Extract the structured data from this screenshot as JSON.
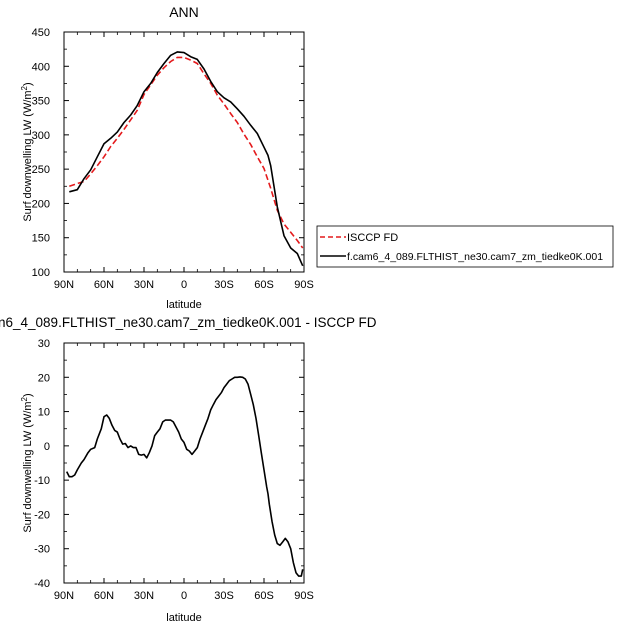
{
  "chart_data": [
    {
      "type": "line",
      "title": "ANN",
      "xlabel": "latitude",
      "ylabel_main": "Surf downwelling LW (W/m",
      "ylabel_sup": "2",
      "ylabel_close": ")",
      "xlim": [
        90,
        -90
      ],
      "ylim": [
        100,
        450
      ],
      "xticks": [
        90,
        60,
        30,
        0,
        -30,
        -60,
        -90
      ],
      "xticklabels": [
        "90N",
        "60N",
        "30N",
        "0",
        "30S",
        "60S",
        "90S"
      ],
      "yticks": [
        100,
        150,
        200,
        250,
        300,
        350,
        400,
        450
      ],
      "yticklabels": [
        "100",
        "150",
        "200",
        "250",
        "300",
        "350",
        "400",
        "450"
      ],
      "legend_position": "right",
      "series": [
        {
          "name": "ISCCP FD",
          "color": "#e41a1c",
          "dash": "dashed",
          "x": [
            86,
            80,
            75,
            70,
            65,
            60,
            55,
            50,
            45,
            40,
            35,
            30,
            25,
            20,
            15,
            10,
            5,
            0,
            -5,
            -10,
            -15,
            -20,
            -25,
            -30,
            -35,
            -40,
            -45,
            -50,
            -55,
            -60,
            -65,
            -70,
            -75,
            -80,
            -85,
            -89
          ],
          "y": [
            225,
            229,
            232,
            243,
            255,
            268,
            283,
            295,
            308,
            322,
            336,
            359,
            373,
            387,
            398,
            407,
            413,
            413,
            409,
            404,
            389,
            375,
            358,
            345,
            331,
            318,
            301,
            286,
            268,
            251,
            222,
            190,
            170,
            158,
            146,
            135
          ]
        },
        {
          "name": "f.cam6_4_089.FLTHIST_ne30.cam7_zm_tiedke0K.001",
          "color": "#000000",
          "dash": "solid",
          "x": [
            86,
            80,
            75,
            70,
            65,
            60,
            55,
            50,
            45,
            40,
            35,
            30,
            25,
            20,
            15,
            10,
            5,
            0,
            -5,
            -10,
            -15,
            -20,
            -25,
            -30,
            -35,
            -40,
            -45,
            -50,
            -55,
            -60,
            -63,
            -65,
            -70,
            -75,
            -80,
            -85,
            -89
          ],
          "y": [
            217,
            220,
            236,
            249,
            268,
            287,
            295,
            304,
            318,
            329,
            343,
            363,
            375,
            391,
            404,
            416,
            421,
            420,
            414,
            410,
            396,
            378,
            363,
            354,
            348,
            338,
            327,
            314,
            302,
            282,
            270,
            255,
            195,
            153,
            135,
            127,
            109
          ]
        }
      ]
    },
    {
      "type": "line",
      "title": "n6_4_089.FLTHIST_ne30.cam7_zm_tiedke0K.001 - ISCCP FD",
      "xlabel": "latitude",
      "ylabel_main": "Surf downwelling LW (W/m",
      "ylabel_sup": "2",
      "ylabel_close": ")",
      "xlim": [
        90,
        -90
      ],
      "ylim": [
        -40,
        30
      ],
      "xticks": [
        90,
        60,
        30,
        0,
        -30,
        -60,
        -90
      ],
      "xticklabels": [
        "90N",
        "60N",
        "30N",
        "0",
        "30S",
        "60S",
        "90S"
      ],
      "yticks": [
        -40,
        -30,
        -20,
        -10,
        0,
        10,
        20,
        30
      ],
      "yticklabels": [
        "-40",
        "-30",
        "-20",
        "-10",
        "0",
        "10",
        "20",
        "30"
      ],
      "series": [
        {
          "color": "#000000",
          "dash": "solid",
          "x": [
            88,
            86,
            84,
            82,
            80,
            77,
            75,
            72,
            70,
            67,
            65,
            62,
            60,
            58,
            56,
            54,
            52,
            50,
            48,
            46,
            44,
            42,
            40,
            38,
            36,
            34,
            32,
            30,
            28,
            26,
            24,
            22,
            20,
            18,
            16,
            14,
            12,
            10,
            8,
            6,
            4,
            2,
            0,
            -2,
            -4,
            -6,
            -8,
            -10,
            -12,
            -14,
            -16,
            -18,
            -20,
            -22,
            -24,
            -26,
            -28,
            -30,
            -32,
            -34,
            -36,
            -38,
            -40,
            -42,
            -44,
            -46,
            -48,
            -50,
            -52,
            -54,
            -56,
            -58,
            -60,
            -62,
            -63,
            -64,
            -66,
            -68,
            -70,
            -72,
            -74,
            -76,
            -78,
            -80,
            -82,
            -84,
            -86,
            -88,
            -89
          ],
          "y": [
            -7.5,
            -9,
            -9,
            -8.5,
            -7,
            -5,
            -4,
            -2,
            -1,
            -0.5,
            2,
            5,
            8.5,
            9,
            8,
            6,
            4.5,
            4,
            2,
            0.5,
            0.7,
            -0.5,
            0,
            -0.5,
            -0.5,
            -2.5,
            -2.7,
            -2.5,
            -3.5,
            -2,
            0,
            3,
            4,
            5,
            7,
            7.5,
            7.5,
            7.5,
            7,
            5.5,
            4,
            2,
            1,
            -1,
            -1.5,
            -2.5,
            -1.5,
            -0.5,
            2,
            4,
            6,
            8,
            10.5,
            12,
            13.5,
            14.5,
            15.5,
            17,
            18,
            19,
            19.5,
            20,
            20,
            20.1,
            20,
            19.5,
            18,
            15,
            12,
            8,
            3,
            -2,
            -7,
            -12,
            -14,
            -17,
            -22,
            -26,
            -28.5,
            -29,
            -28,
            -27,
            -28,
            -30,
            -34,
            -37,
            -38,
            -38,
            -36
          ]
        }
      ]
    }
  ]
}
